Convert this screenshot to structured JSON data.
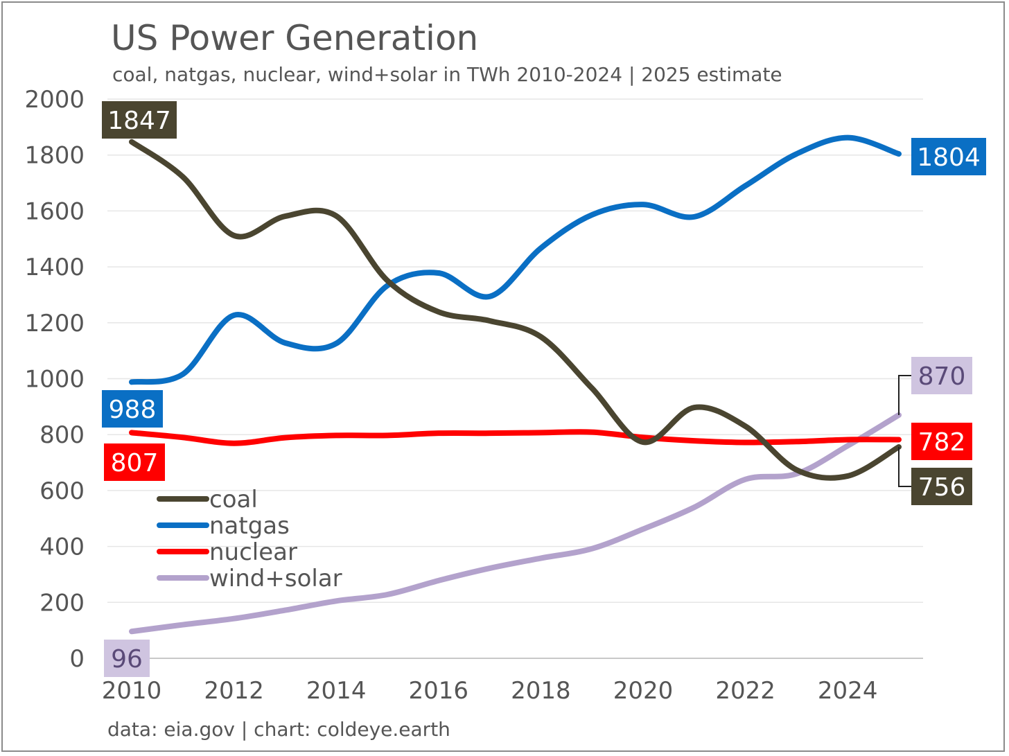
{
  "chart_data": {
    "type": "line",
    "title": "US Power Generation",
    "subtitle": "coal, natgas, nuclear, wind+solar in TWh 2010-2024 | 2025 estimate",
    "credit": "data: eia.gov | chart: coldeye.earth",
    "xlabel": "",
    "ylabel": "",
    "x": [
      2010,
      2011,
      2012,
      2013,
      2014,
      2015,
      2016,
      2017,
      2018,
      2019,
      2020,
      2021,
      2022,
      2023,
      2024,
      2025
    ],
    "xlim": [
      2010,
      2025
    ],
    "ylim": [
      0,
      2000
    ],
    "xticks": [
      "2010",
      "2012",
      "2014",
      "2016",
      "2018",
      "2020",
      "2022",
      "2024"
    ],
    "yticks": [
      "0",
      "200",
      "400",
      "600",
      "800",
      "1000",
      "1200",
      "1400",
      "1600",
      "1800",
      "2000"
    ],
    "grid": true,
    "legend_position": "center-left",
    "series": [
      {
        "name": "coal",
        "color": "#4a4530",
        "label_text_color": "#ffffff",
        "values": [
          1847,
          1722,
          1512,
          1581,
          1582,
          1351,
          1239,
          1207,
          1150,
          966,
          773,
          897,
          830,
          674,
          652,
          756
        ],
        "start_label": "1847",
        "end_label": "756"
      },
      {
        "name": "natgas",
        "color": "#0a6fc4",
        "label_text_color": "#ffffff",
        "values": [
          988,
          1016,
          1227,
          1128,
          1126,
          1333,
          1378,
          1294,
          1467,
          1586,
          1623,
          1579,
          1690,
          1804,
          1862,
          1804
        ],
        "start_label": "988",
        "end_label": "1804"
      },
      {
        "name": "nuclear",
        "color": "#ff0000",
        "label_text_color": "#ffffff",
        "values": [
          807,
          790,
          769,
          789,
          797,
          797,
          805,
          805,
          807,
          809,
          790,
          778,
          772,
          775,
          782,
          782
        ],
        "start_label": "807",
        "end_label": "782"
      },
      {
        "name": "wind+solar",
        "color": "#b3a2cc",
        "label_bg": "#cfc4e0",
        "label_text_color": "#5a4a78",
        "values": [
          96,
          120,
          142,
          172,
          205,
          228,
          278,
          322,
          358,
          392,
          462,
          540,
          640,
          660,
          760,
          870
        ],
        "start_label": "96",
        "end_label": "870"
      }
    ]
  }
}
